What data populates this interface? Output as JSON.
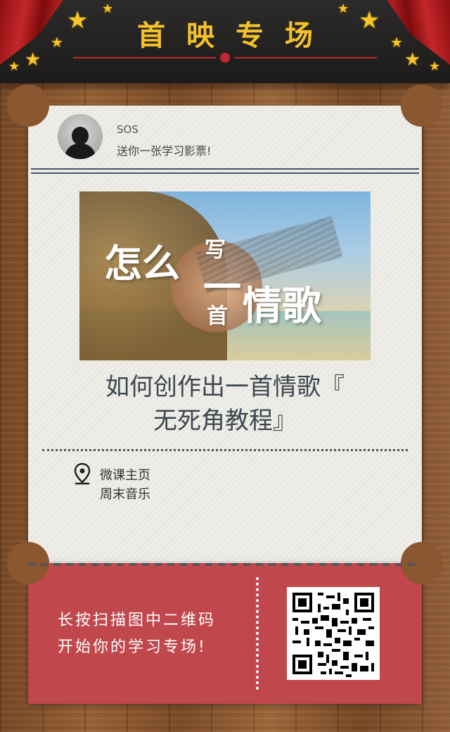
{
  "header": {
    "title": "首映专场"
  },
  "ticket": {
    "user": {
      "name": "SOS",
      "message": "送你一张学习影票!"
    },
    "banner": {
      "t1": "怎么",
      "t2": "写",
      "t3": "一",
      "t4": "首",
      "t5": "情歌"
    },
    "course_title_line1": "如何创作出一首情歌『",
    "course_title_line2": "无死角教程』",
    "home_label": "微课主页",
    "home_name": "周末音乐"
  },
  "stub": {
    "line1": "长按扫描图中二维码",
    "line2": "开始你的学习专场!"
  },
  "colors": {
    "accent": "#c0282b",
    "gold": "#f5c12a",
    "stub": "#c0484d",
    "ticket": "#efeee9"
  }
}
